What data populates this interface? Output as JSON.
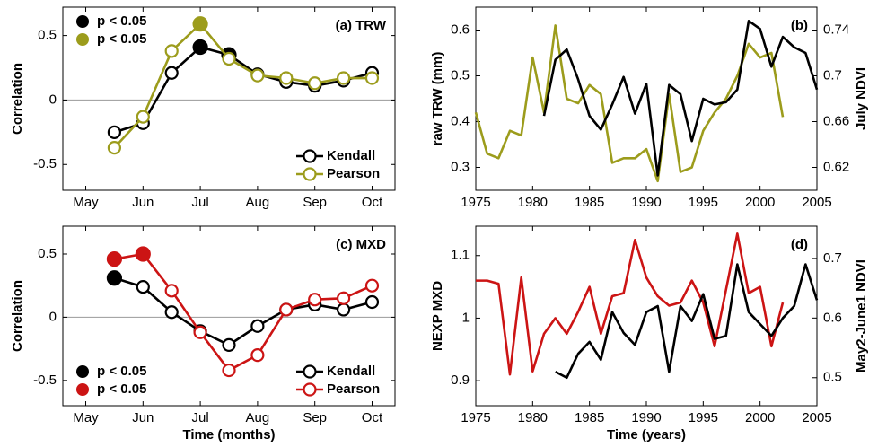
{
  "chart_data": [
    {
      "type": "line",
      "title": "(a) TRW",
      "ylabel": "Correlation",
      "markers": true,
      "zero_line": true,
      "x": [
        5.5,
        6,
        6.5,
        7,
        7.5,
        8,
        8.5,
        9,
        9.5,
        10
      ],
      "xlim": [
        4.6,
        10.4
      ],
      "xticks": [
        {
          "value": 5,
          "label": "May"
        },
        {
          "value": 6,
          "label": "Jun"
        },
        {
          "value": 7,
          "label": "Jul"
        },
        {
          "value": 8,
          "label": "Aug"
        },
        {
          "value": 9,
          "label": "Sep"
        },
        {
          "value": 10,
          "label": "Oct"
        }
      ],
      "ylim": [
        -0.7,
        0.72
      ],
      "yticks": [
        -0.5,
        0,
        0.5
      ],
      "legend": "lower right",
      "significance_legend": "upper left",
      "series": [
        {
          "name": "Kendall",
          "color": "#000000",
          "significance_label": "p < 0.05",
          "values": [
            -0.25,
            -0.18,
            0.21,
            0.41,
            0.35,
            0.2,
            0.14,
            0.11,
            0.15,
            0.21
          ],
          "significant": [
            false,
            false,
            false,
            true,
            true,
            false,
            false,
            false,
            false,
            false
          ]
        },
        {
          "name": "Pearson",
          "color": "#9c9c1c",
          "significance_label": "p < 0.05",
          "values": [
            -0.37,
            -0.13,
            0.38,
            0.59,
            0.32,
            0.19,
            0.17,
            0.13,
            0.17,
            0.17
          ],
          "significant": [
            false,
            false,
            false,
            true,
            false,
            false,
            false,
            false,
            false,
            false
          ]
        }
      ]
    },
    {
      "type": "line",
      "title": "(b)",
      "ylabel": "raw TRW (mm)",
      "y2label": "July NDVI",
      "x": [
        1975,
        1976,
        1977,
        1978,
        1979,
        1980,
        1981,
        1982,
        1983,
        1984,
        1985,
        1986,
        1987,
        1988,
        1989,
        1990,
        1991,
        1992,
        1993,
        1994,
        1995,
        1996,
        1997,
        1998,
        1999,
        2000,
        2001,
        2002,
        2003,
        2004,
        2005
      ],
      "xlim": [
        1975,
        2005
      ],
      "xticks": [
        1975,
        1980,
        1985,
        1990,
        1995,
        2000,
        2005
      ],
      "ylim": [
        0.25,
        0.65
      ],
      "yticks": [
        0.3,
        0.4,
        0.5,
        0.6
      ],
      "y2lim": [
        0.6,
        0.76
      ],
      "y2ticks": [
        0.62,
        0.66,
        0.7,
        0.74
      ],
      "series": [
        {
          "name": "raw TRW",
          "color": "#9c9c1c",
          "values": [
            0.42,
            0.33,
            0.32,
            0.38,
            0.37,
            0.54,
            0.42,
            0.61,
            0.45,
            0.44,
            0.48,
            0.46,
            0.31,
            0.32,
            0.32,
            0.34,
            0.27,
            0.46,
            0.29,
            0.3,
            0.38,
            0.42,
            0.45,
            0.5,
            0.57,
            0.54,
            0.55,
            0.41,
            null,
            null,
            null
          ]
        },
        {
          "name": "July NDVI",
          "color": "#000000",
          "axis": "y2",
          "values": [
            null,
            null,
            null,
            null,
            null,
            null,
            0.665,
            0.714,
            0.723,
            0.697,
            0.665,
            0.653,
            0.675,
            0.699,
            0.667,
            0.693,
            0.613,
            0.692,
            0.684,
            0.643,
            0.68,
            0.675,
            0.677,
            0.688,
            0.748,
            0.741,
            0.708,
            0.734,
            0.725,
            0.72,
            0.688
          ]
        }
      ]
    },
    {
      "type": "line",
      "title": "(c) MXD",
      "ylabel": "Correlation",
      "xlabel": "Time (months)",
      "markers": true,
      "zero_line": true,
      "x": [
        5.5,
        6,
        6.5,
        7,
        7.5,
        8,
        8.5,
        9,
        9.5,
        10
      ],
      "xlim": [
        4.6,
        10.4
      ],
      "xticks": [
        {
          "value": 5,
          "label": "May"
        },
        {
          "value": 6,
          "label": "Jun"
        },
        {
          "value": 7,
          "label": "Jul"
        },
        {
          "value": 8,
          "label": "Aug"
        },
        {
          "value": 9,
          "label": "Sep"
        },
        {
          "value": 10,
          "label": "Oct"
        }
      ],
      "ylim": [
        -0.7,
        0.72
      ],
      "yticks": [
        -0.5,
        0,
        0.5
      ],
      "legend": "lower right",
      "significance_legend": "lower left",
      "series": [
        {
          "name": "Kendall",
          "color": "#000000",
          "significance_label": "p < 0.05",
          "values": [
            0.31,
            0.24,
            0.04,
            -0.11,
            -0.22,
            -0.07,
            0.06,
            0.1,
            0.06,
            0.12
          ],
          "significant": [
            true,
            false,
            false,
            false,
            false,
            false,
            false,
            false,
            false,
            false
          ]
        },
        {
          "name": "Pearson",
          "color": "#cc1414",
          "significance_label": "p < 0.05",
          "values": [
            0.46,
            0.5,
            0.21,
            -0.12,
            -0.42,
            -0.3,
            0.06,
            0.14,
            0.15,
            0.25
          ],
          "significant": [
            true,
            true,
            false,
            false,
            false,
            false,
            false,
            false,
            false,
            false
          ]
        }
      ]
    },
    {
      "type": "line",
      "title": "(d)",
      "ylabel": "NEXP MXD",
      "y2label": "May2-June1 NDVI",
      "xlabel": "Time (years)",
      "x": [
        1975,
        1976,
        1977,
        1978,
        1979,
        1980,
        1981,
        1982,
        1983,
        1984,
        1985,
        1986,
        1987,
        1988,
        1989,
        1990,
        1991,
        1992,
        1993,
        1994,
        1995,
        1996,
        1997,
        1998,
        1999,
        2000,
        2001,
        2002,
        2003,
        2004,
        2005
      ],
      "xlim": [
        1975,
        2005
      ],
      "xticks": [
        1975,
        1980,
        1985,
        1990,
        1995,
        2000,
        2005
      ],
      "ylim": [
        0.86,
        1.147
      ],
      "yticks": [
        0.9,
        1,
        1.1
      ],
      "y2lim": [
        0.453,
        0.754
      ],
      "y2ticks": [
        0.5,
        0.6,
        0.7
      ],
      "series": [
        {
          "name": "NEXP MXD",
          "color": "#cc1414",
          "values": [
            1.06,
            1.06,
            1.055,
            0.91,
            1.065,
            0.915,
            0.975,
            1.0,
            0.975,
            1.01,
            1.05,
            0.975,
            1.035,
            1.04,
            1.125,
            1.065,
            1.035,
            1.02,
            1.025,
            1.06,
            1.025,
            0.955,
            1.045,
            1.135,
            1.04,
            1.05,
            0.955,
            1.025,
            null,
            null,
            null
          ]
        },
        {
          "name": "May2-June1 NDVI",
          "color": "#000000",
          "axis": "y2",
          "values": [
            null,
            null,
            null,
            null,
            null,
            null,
            null,
            0.51,
            0.5,
            0.54,
            0.56,
            0.53,
            0.61,
            0.575,
            0.555,
            0.61,
            0.62,
            0.51,
            0.62,
            0.595,
            0.64,
            0.565,
            0.57,
            0.69,
            0.61,
            0.59,
            0.57,
            0.6,
            0.62,
            0.69,
            0.63
          ]
        }
      ]
    }
  ]
}
